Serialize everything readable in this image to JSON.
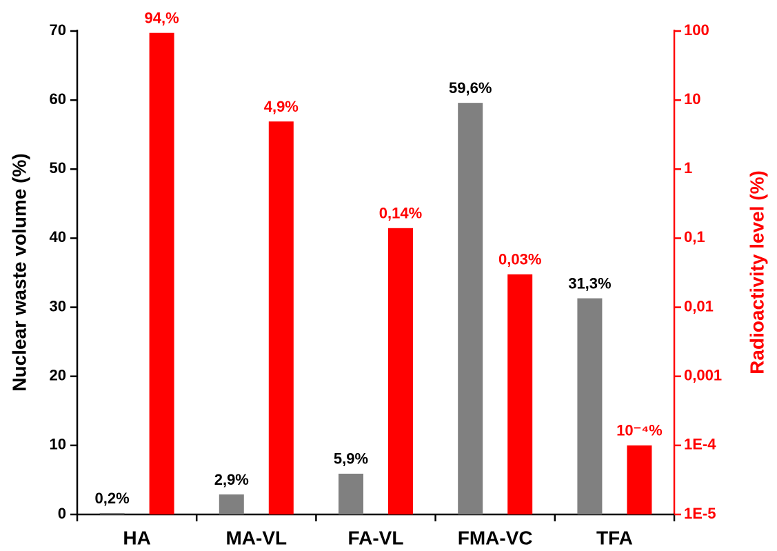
{
  "chart_data": {
    "type": "bar",
    "categories": [
      "HA",
      "MA-VL",
      "FA-VL",
      "FMA-VC",
      "TFA"
    ],
    "ylabel": "Nuclear waste volume (%)",
    "y2label": "Radioactivity level (%)",
    "ylim": [
      0,
      70
    ],
    "yticks": [
      0,
      10,
      20,
      30,
      40,
      50,
      60,
      70
    ],
    "y2lim": [
      1e-05,
      100
    ],
    "y2scale": "log",
    "y2ticks": [
      {
        "value": 1e-05,
        "label": "1E-5"
      },
      {
        "value": 0.0001,
        "label": "1E-4"
      },
      {
        "value": 0.001,
        "label": "0,001"
      },
      {
        "value": 0.01,
        "label": "0,01"
      },
      {
        "value": 0.1,
        "label": "0,1"
      },
      1,
      10,
      100
    ],
    "series": [
      {
        "color": "#808080",
        "values": [
          0.2,
          2.9,
          5.9,
          59.6,
          31.3
        ],
        "value_labels": [
          "0,2%",
          "2,9%",
          "5,9%",
          "59,6%",
          "31,3%"
        ],
        "label_color": "#000000"
      },
      {
        "color": "#ff0000",
        "axis": "y2",
        "values": [
          94,
          4.9,
          0.14,
          0.03,
          0.0001
        ],
        "value_labels": [
          "94,%",
          "4,9%",
          "0,14%",
          "0,03%",
          "10⁻⁴%"
        ],
        "label_color": "#ff0000"
      }
    ]
  }
}
